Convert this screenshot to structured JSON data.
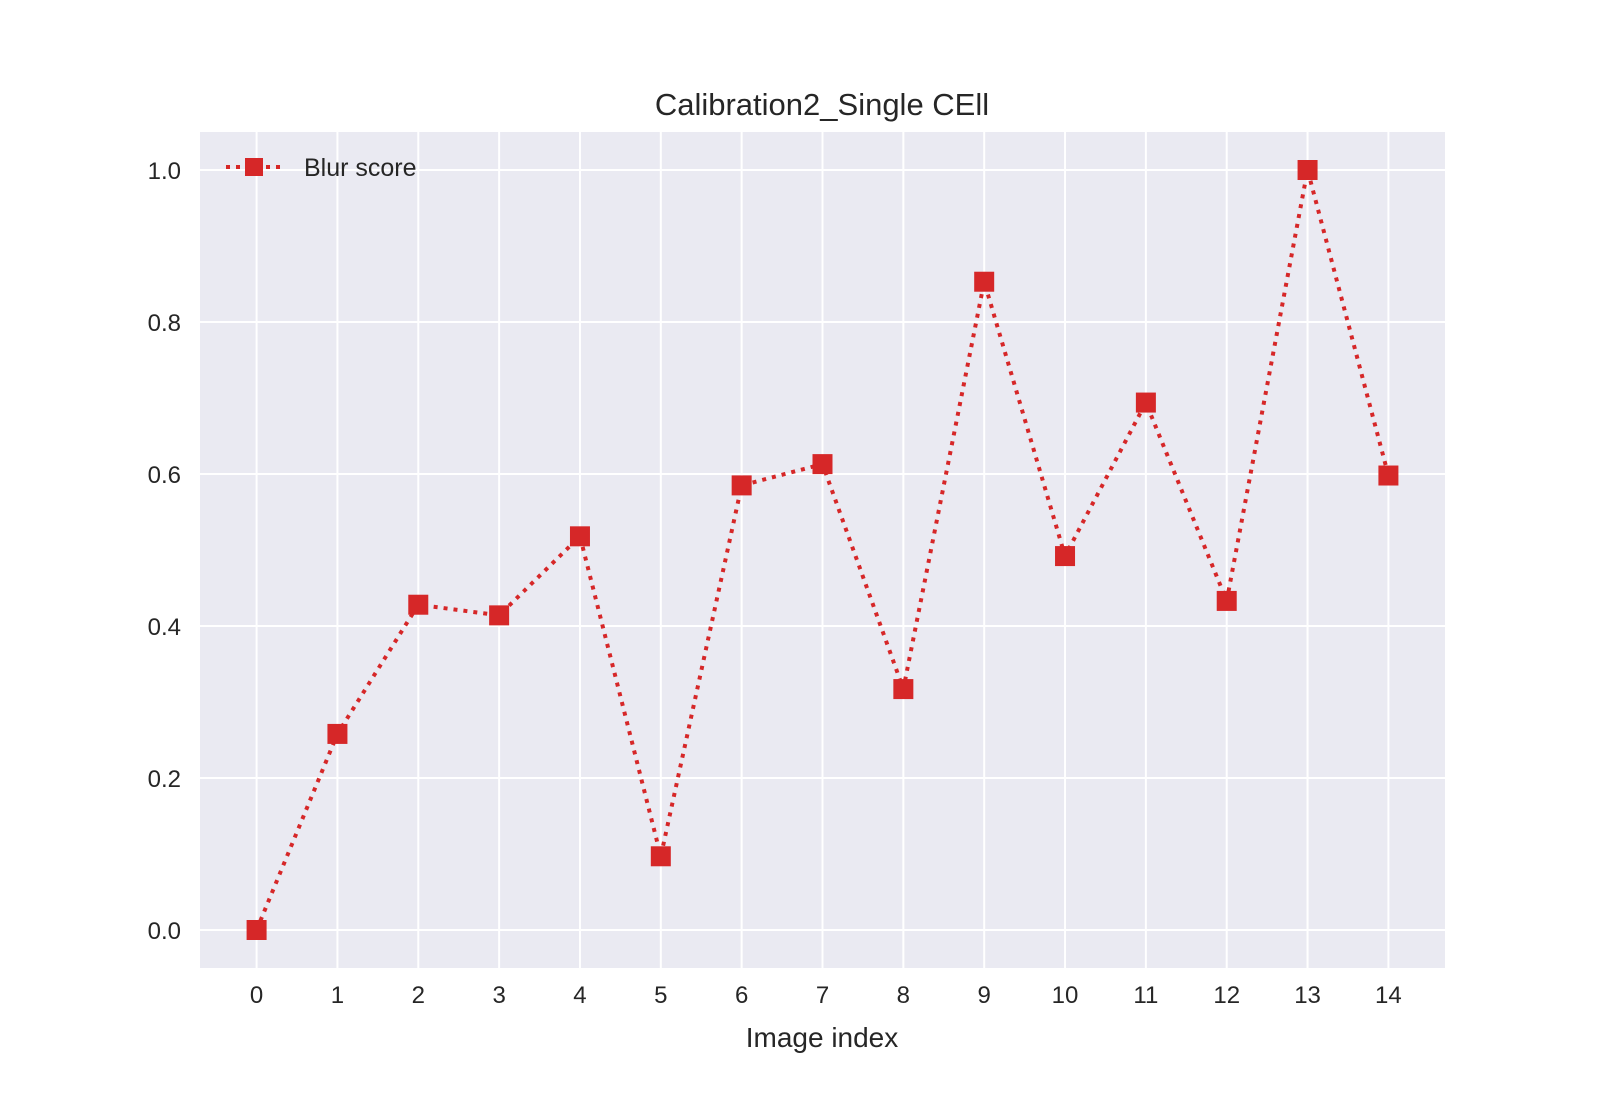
{
  "chart_data": {
    "type": "line",
    "title": "Calibration2_Single CEll",
    "xlabel": "Image index",
    "ylabel": "",
    "x": [
      0,
      1,
      2,
      3,
      4,
      5,
      6,
      7,
      8,
      9,
      10,
      11,
      12,
      13,
      14
    ],
    "series": [
      {
        "name": "Blur score",
        "values": [
          0.0,
          0.258,
          0.428,
          0.414,
          0.518,
          0.097,
          0.585,
          0.613,
          0.317,
          0.853,
          0.492,
          0.694,
          0.433,
          1.0,
          0.598
        ],
        "color": "#d62728",
        "line_style": "dotted",
        "marker": "square"
      }
    ],
    "xticks": [
      "0",
      "1",
      "2",
      "3",
      "4",
      "5",
      "6",
      "7",
      "8",
      "9",
      "10",
      "11",
      "12",
      "13",
      "14"
    ],
    "yticks": [
      "0.0",
      "0.2",
      "0.4",
      "0.6",
      "0.8",
      "1.0"
    ],
    "xlim": [
      -0.7,
      14.7
    ],
    "ylim": [
      -0.05,
      1.05
    ],
    "grid": true,
    "legend_position": "top-left",
    "background_color": "#eaeaf2",
    "grid_color": "#ffffff"
  }
}
